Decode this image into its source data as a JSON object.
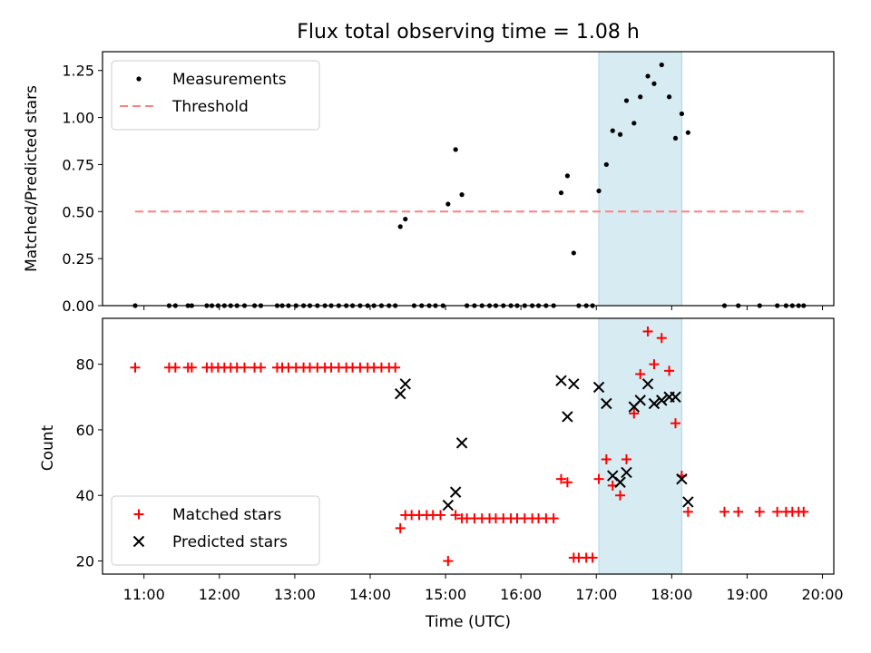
{
  "chart_data": {
    "title": "Flux total observing time = 1.08 h",
    "xlabel": "Time (UTC)",
    "x_unit": "hours UTC",
    "x_range": [
      "10:27",
      "20:09"
    ],
    "x_ticks": [
      "11:00",
      "12:00",
      "13:00",
      "14:00",
      "15:00",
      "16:00",
      "17:00",
      "18:00",
      "19:00",
      "20:00"
    ],
    "shaded_span": {
      "from": "17:02",
      "to": "18:08",
      "color": "#add8e6"
    },
    "panels": [
      {
        "type": "scatter",
        "ylabel": "Matched/Predicted stars",
        "ylim": [
          0,
          1.35
        ],
        "y_ticks": [
          "0.00",
          "0.25",
          "0.50",
          "0.75",
          "1.00",
          "1.25"
        ],
        "y_tick_values": [
          0,
          0.25,
          0.5,
          0.75,
          1.0,
          1.25
        ],
        "legend": "upper left",
        "series": [
          {
            "name": "Measurements",
            "marker": "dot",
            "color": "#000000",
            "points": [
              [
                "10:53",
                0
              ],
              [
                "11:20",
                0
              ],
              [
                "11:25",
                0
              ],
              [
                "11:35",
                0
              ],
              [
                "11:38",
                0
              ],
              [
                "11:50",
                0
              ],
              [
                "11:54",
                0
              ],
              [
                "11:59",
                0
              ],
              [
                "12:04",
                0
              ],
              [
                "12:09",
                0
              ],
              [
                "12:14",
                0
              ],
              [
                "12:20",
                0
              ],
              [
                "12:28",
                0
              ],
              [
                "12:33",
                0
              ],
              [
                "12:46",
                0
              ],
              [
                "12:50",
                0
              ],
              [
                "12:55",
                0
              ],
              [
                "13:01",
                0
              ],
              [
                "13:07",
                0
              ],
              [
                "13:12",
                0
              ],
              [
                "13:18",
                0
              ],
              [
                "13:24",
                0
              ],
              [
                "13:29",
                0
              ],
              [
                "13:35",
                0
              ],
              [
                "13:41",
                0
              ],
              [
                "13:46",
                0
              ],
              [
                "13:52",
                0
              ],
              [
                "13:58",
                0
              ],
              [
                "14:03",
                0
              ],
              [
                "14:09",
                0
              ],
              [
                "14:15",
                0
              ],
              [
                "14:20",
                0
              ],
              [
                "14:24",
                0.42
              ],
              [
                "14:28",
                0.46
              ],
              [
                "14:35",
                0
              ],
              [
                "14:41",
                0
              ],
              [
                "14:47",
                0
              ],
              [
                "14:52",
                0
              ],
              [
                "14:58",
                0
              ],
              [
                "15:02",
                0.54
              ],
              [
                "15:08",
                0.83
              ],
              [
                "15:13",
                0.59
              ],
              [
                "15:17",
                0
              ],
              [
                "15:23",
                0
              ],
              [
                "15:29",
                0
              ],
              [
                "15:35",
                0
              ],
              [
                "15:40",
                0
              ],
              [
                "15:46",
                0
              ],
              [
                "15:52",
                0
              ],
              [
                "15:57",
                0
              ],
              [
                "16:03",
                0
              ],
              [
                "16:09",
                0
              ],
              [
                "16:14",
                0
              ],
              [
                "16:20",
                0
              ],
              [
                "16:26",
                0
              ],
              [
                "16:32",
                0.6
              ],
              [
                "16:37",
                0.69
              ],
              [
                "16:42",
                0.28
              ],
              [
                "16:46",
                0
              ],
              [
                "16:52",
                0
              ],
              [
                "16:57",
                0
              ],
              [
                "17:02",
                0.61
              ],
              [
                "17:08",
                0.75
              ],
              [
                "17:13",
                0.93
              ],
              [
                "17:19",
                0.91
              ],
              [
                "17:24",
                1.09
              ],
              [
                "17:30",
                0.97
              ],
              [
                "17:35",
                1.11
              ],
              [
                "17:41",
                1.22
              ],
              [
                "17:46",
                1.18
              ],
              [
                "17:52",
                1.28
              ],
              [
                "17:58",
                1.11
              ],
              [
                "18:03",
                0.89
              ],
              [
                "18:08",
                1.02
              ],
              [
                "18:13",
                0.92
              ],
              [
                "18:42",
                0
              ],
              [
                "18:53",
                0
              ],
              [
                "19:10",
                0
              ],
              [
                "19:24",
                0
              ],
              [
                "19:31",
                0
              ],
              [
                "19:36",
                0
              ],
              [
                "19:41",
                0
              ],
              [
                "19:45",
                0
              ]
            ]
          },
          {
            "name": "Threshold",
            "marker": "dashed-line",
            "color": "#ff7f7f",
            "points": [
              [
                "10:53",
                0.5
              ],
              [
                "19:45",
                0.5
              ]
            ]
          }
        ]
      },
      {
        "type": "scatter",
        "ylabel": "Count",
        "ylim": [
          16,
          94
        ],
        "y_ticks": [
          "20",
          "40",
          "60",
          "80"
        ],
        "y_tick_values": [
          20,
          40,
          60,
          80
        ],
        "legend": "lower left",
        "series": [
          {
            "name": "Matched stars",
            "marker": "plus",
            "color": "#ff0000",
            "points": [
              [
                "10:53",
                79
              ],
              [
                "11:20",
                79
              ],
              [
                "11:25",
                79
              ],
              [
                "11:35",
                79
              ],
              [
                "11:38",
                79
              ],
              [
                "11:50",
                79
              ],
              [
                "11:54",
                79
              ],
              [
                "11:59",
                79
              ],
              [
                "12:04",
                79
              ],
              [
                "12:09",
                79
              ],
              [
                "12:14",
                79
              ],
              [
                "12:20",
                79
              ],
              [
                "12:28",
                79
              ],
              [
                "12:33",
                79
              ],
              [
                "12:46",
                79
              ],
              [
                "12:50",
                79
              ],
              [
                "12:55",
                79
              ],
              [
                "13:01",
                79
              ],
              [
                "13:07",
                79
              ],
              [
                "13:12",
                79
              ],
              [
                "13:18",
                79
              ],
              [
                "13:24",
                79
              ],
              [
                "13:29",
                79
              ],
              [
                "13:35",
                79
              ],
              [
                "13:41",
                79
              ],
              [
                "13:46",
                79
              ],
              [
                "13:52",
                79
              ],
              [
                "13:58",
                79
              ],
              [
                "14:03",
                79
              ],
              [
                "14:09",
                79
              ],
              [
                "14:15",
                79
              ],
              [
                "14:20",
                79
              ],
              [
                "14:24",
                30
              ],
              [
                "14:28",
                34
              ],
              [
                "14:33",
                34
              ],
              [
                "14:39",
                34
              ],
              [
                "14:45",
                34
              ],
              [
                "14:50",
                34
              ],
              [
                "14:56",
                34
              ],
              [
                "15:02",
                20
              ],
              [
                "15:08",
                34
              ],
              [
                "15:13",
                33
              ],
              [
                "15:17",
                33
              ],
              [
                "15:23",
                33
              ],
              [
                "15:29",
                33
              ],
              [
                "15:35",
                33
              ],
              [
                "15:40",
                33
              ],
              [
                "15:46",
                33
              ],
              [
                "15:52",
                33
              ],
              [
                "15:57",
                33
              ],
              [
                "16:03",
                33
              ],
              [
                "16:09",
                33
              ],
              [
                "16:14",
                33
              ],
              [
                "16:20",
                33
              ],
              [
                "16:26",
                33
              ],
              [
                "16:32",
                45
              ],
              [
                "16:37",
                44
              ],
              [
                "16:42",
                21
              ],
              [
                "16:46",
                21
              ],
              [
                "16:52",
                21
              ],
              [
                "16:57",
                21
              ],
              [
                "17:02",
                45
              ],
              [
                "17:08",
                51
              ],
              [
                "17:13",
                43
              ],
              [
                "17:19",
                40
              ],
              [
                "17:24",
                51
              ],
              [
                "17:30",
                65
              ],
              [
                "17:35",
                77
              ],
              [
                "17:41",
                90
              ],
              [
                "17:46",
                80
              ],
              [
                "17:52",
                88
              ],
              [
                "17:58",
                78
              ],
              [
                "18:03",
                62
              ],
              [
                "18:08",
                46
              ],
              [
                "18:13",
                35
              ],
              [
                "18:42",
                35
              ],
              [
                "18:53",
                35
              ],
              [
                "19:10",
                35
              ],
              [
                "19:24",
                35
              ],
              [
                "19:31",
                35
              ],
              [
                "19:36",
                35
              ],
              [
                "19:41",
                35
              ],
              [
                "19:45",
                35
              ]
            ]
          },
          {
            "name": "Predicted stars",
            "marker": "x",
            "color": "#000000",
            "points": [
              [
                "14:24",
                71
              ],
              [
                "14:28",
                74
              ],
              [
                "15:02",
                37
              ],
              [
                "15:08",
                41
              ],
              [
                "15:13",
                56
              ],
              [
                "16:32",
                75
              ],
              [
                "16:37",
                64
              ],
              [
                "16:42",
                74
              ],
              [
                "17:02",
                73
              ],
              [
                "17:08",
                68
              ],
              [
                "17:13",
                46
              ],
              [
                "17:19",
                44
              ],
              [
                "17:24",
                47
              ],
              [
                "17:30",
                67
              ],
              [
                "17:35",
                69
              ],
              [
                "17:41",
                74
              ],
              [
                "17:46",
                68
              ],
              [
                "17:52",
                69
              ],
              [
                "17:58",
                70
              ],
              [
                "18:03",
                70
              ],
              [
                "18:08",
                45
              ],
              [
                "18:13",
                38
              ]
            ]
          }
        ]
      }
    ]
  }
}
